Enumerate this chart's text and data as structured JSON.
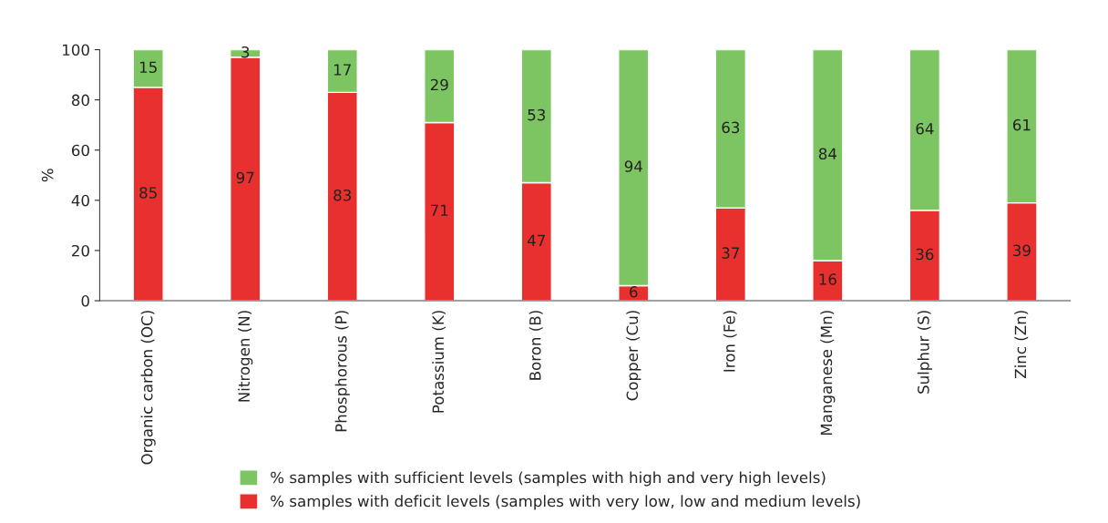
{
  "chart_data": {
    "type": "bar",
    "stacked": true,
    "ylabel": "%",
    "categories": [
      "Organic carbon (OC)",
      "Nitrogen (N)",
      "Phosphorous (P)",
      "Potassium (K)",
      "Boron (B)",
      "Copper (Cu)",
      "Iron (Fe)",
      "Manganese (Mn)",
      "Sulphur (S)",
      "Zinc (Zn)"
    ],
    "series": [
      {
        "name": "% samples with deficit levels (samples with very low, low and medium levels)",
        "color": "#e8312f",
        "values": [
          85,
          97,
          83,
          71,
          47,
          6,
          37,
          16,
          36,
          39
        ]
      },
      {
        "name": "% samples with sufficient levels (samples with high and very high levels)",
        "color": "#7dc462",
        "values": [
          15,
          3,
          17,
          29,
          53,
          94,
          63,
          84,
          64,
          61
        ]
      }
    ],
    "ylim": [
      0,
      100
    ],
    "yticks": [
      0,
      20,
      40,
      60,
      80,
      100
    ],
    "grid": false,
    "legend": "bottom",
    "data_labels": true
  }
}
